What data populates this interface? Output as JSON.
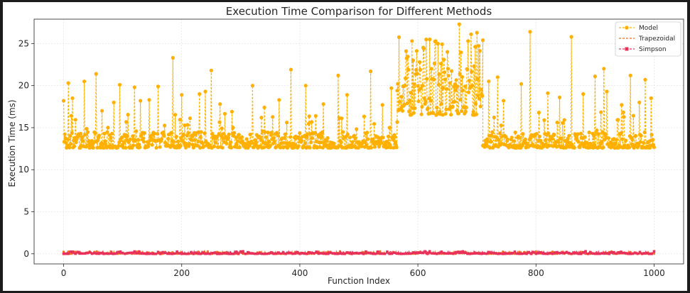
{
  "chart_data": {
    "type": "line",
    "title": "Execution Time Comparison for Different Methods",
    "xlabel": "Function Index",
    "ylabel": "Execution Time (ms)",
    "xlim": [
      -50,
      1050
    ],
    "ylim": [
      -1.2,
      27.9
    ],
    "xticks": [
      0,
      200,
      400,
      600,
      800,
      1000
    ],
    "yticks": [
      0,
      5,
      10,
      15,
      20,
      25
    ],
    "grid": true,
    "legend_position": "top-right",
    "series": [
      {
        "name": "Model",
        "color": "#FFB000",
        "style": "dashed-with-dots",
        "segments": [
          {
            "range": [
              0,
              565
            ],
            "baseline": [
              12.6,
              14.5
            ],
            "spikes": [
              [
                0,
                18.2
              ],
              [
                8,
                20.3
              ],
              [
                15,
                18.5
              ],
              [
                35,
                20.5
              ],
              [
                55,
                21.4
              ],
              [
                65,
                17.0
              ],
              [
                75,
                15.0
              ],
              [
                85,
                18.0
              ],
              [
                95,
                20.1
              ],
              [
                120,
                19.8
              ],
              [
                130,
                18.2
              ],
              [
                145,
                18.3
              ],
              [
                160,
                19.9
              ],
              [
                185,
                23.3
              ],
              [
                200,
                18.9
              ],
              [
                230,
                19.0
              ],
              [
                240,
                19.3
              ],
              [
                250,
                21.8
              ],
              [
                265,
                17.8
              ],
              [
                285,
                16.9
              ],
              [
                320,
                20.0
              ],
              [
                340,
                17.4
              ],
              [
                365,
                18.3
              ],
              [
                385,
                21.9
              ],
              [
                410,
                20.0
              ],
              [
                440,
                17.8
              ],
              [
                465,
                21.2
              ],
              [
                480,
                18.9
              ],
              [
                520,
                21.7
              ],
              [
                540,
                17.7
              ],
              [
                555,
                19.7
              ]
            ]
          },
          {
            "range": [
              565,
              710
            ],
            "baseline": [
              16.5,
              23.5
            ],
            "spikes": [
              [
                580,
                24.1
              ],
              [
                590,
                25.3
              ],
              [
                610,
                24.4
              ],
              [
                620,
                25.5
              ],
              [
                630,
                25.3
              ],
              [
                650,
                24.0
              ],
              [
                670,
                27.3
              ],
              [
                685,
                25.3
              ],
              [
                690,
                26.1
              ],
              [
                700,
                26.3
              ],
              [
                710,
                25.4
              ]
            ]
          },
          {
            "range": [
              710,
              1000
            ],
            "baseline": [
              12.6,
              14.5
            ],
            "spikes": [
              [
                720,
                20.5
              ],
              [
                735,
                21.0
              ],
              [
                745,
                18.2
              ],
              [
                775,
                20.2
              ],
              [
                790,
                26.4
              ],
              [
                805,
                16.8
              ],
              [
                820,
                19.1
              ],
              [
                840,
                18.6
              ],
              [
                860,
                25.8
              ],
              [
                880,
                19.0
              ],
              [
                900,
                21.1
              ],
              [
                915,
                22.0
              ],
              [
                920,
                19.3
              ],
              [
                945,
                17.7
              ],
              [
                960,
                21.2
              ],
              [
                975,
                18.0
              ],
              [
                985,
                20.7
              ],
              [
                995,
                18.5
              ]
            ]
          }
        ]
      },
      {
        "name": "Trapezoidal",
        "color": "#F26A1B",
        "style": "dashed",
        "value_range": [
          0.0,
          0.3
        ]
      },
      {
        "name": "Simpson",
        "color": "#E8315A",
        "style": "dashed-with-squares",
        "value_range": [
          0.0,
          0.3
        ]
      }
    ]
  }
}
